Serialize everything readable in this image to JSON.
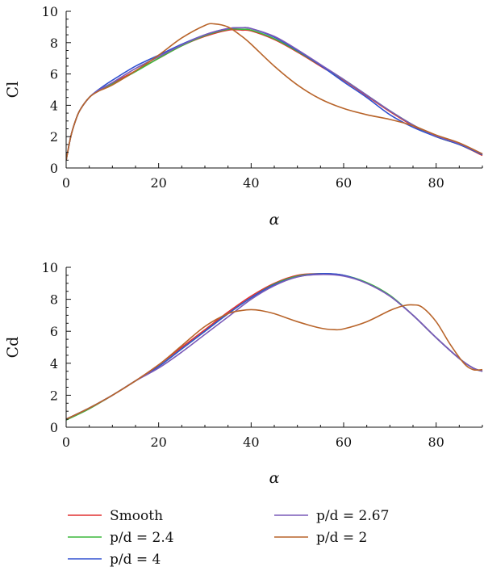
{
  "chart_data": [
    {
      "type": "line",
      "id": "cl",
      "ylabel": "Cl",
      "xlabel": "α",
      "xlim": [
        0,
        90
      ],
      "ylim": [
        0,
        10
      ],
      "xticks": [
        "0",
        "20",
        "40",
        "60",
        "80"
      ],
      "yticks": [
        "0",
        "2",
        "4",
        "6",
        "8",
        "10"
      ],
      "series": [
        {
          "name": "Smooth",
          "color": "#e03030",
          "x": [
            0,
            1,
            2,
            3,
            5,
            7,
            10,
            15,
            20,
            25,
            30,
            35,
            38,
            40,
            45,
            50,
            55,
            60,
            65,
            70,
            75,
            80,
            85,
            90
          ],
          "y": [
            0.5,
            2.0,
            3.0,
            3.7,
            4.5,
            4.95,
            5.4,
            6.2,
            7.0,
            7.8,
            8.4,
            8.8,
            8.8,
            8.75,
            8.2,
            7.4,
            6.5,
            5.6,
            4.6,
            3.6,
            2.7,
            2.0,
            1.5,
            0.8
          ]
        },
        {
          "name": "p/d = 2.4",
          "color": "#3cb83c",
          "x": [
            0,
            1,
            2,
            3,
            5,
            7,
            10,
            15,
            20,
            25,
            30,
            35,
            38,
            40,
            45,
            50,
            55,
            60,
            65,
            70,
            75,
            80,
            85,
            90
          ],
          "y": [
            0.5,
            2.0,
            3.0,
            3.7,
            4.5,
            4.95,
            5.35,
            6.15,
            7.0,
            7.8,
            8.45,
            8.85,
            8.85,
            8.8,
            8.25,
            7.45,
            6.55,
            5.65,
            4.65,
            3.65,
            2.75,
            2.0,
            1.5,
            0.85
          ]
        },
        {
          "name": "p/d = 4",
          "color": "#3050d0",
          "x": [
            0,
            1,
            2,
            3,
            5,
            7,
            10,
            15,
            20,
            25,
            30,
            35,
            38,
            40,
            45,
            50,
            55,
            60,
            65,
            70,
            75,
            80,
            85,
            90
          ],
          "y": [
            0.5,
            2.0,
            3.0,
            3.7,
            4.5,
            5.0,
            5.6,
            6.5,
            7.2,
            7.9,
            8.5,
            8.9,
            8.95,
            8.9,
            8.35,
            7.5,
            6.55,
            5.5,
            4.5,
            3.4,
            2.6,
            2.0,
            1.5,
            0.85
          ]
        },
        {
          "name": "p/d = 2.67",
          "color": "#7a5ab8",
          "x": [
            0,
            1,
            2,
            3,
            5,
            7,
            10,
            15,
            20,
            25,
            30,
            35,
            38,
            40,
            45,
            50,
            55,
            60,
            65,
            70,
            75,
            80,
            85,
            90
          ],
          "y": [
            0.5,
            2.0,
            3.0,
            3.7,
            4.5,
            4.95,
            5.45,
            6.35,
            7.1,
            7.85,
            8.5,
            8.9,
            8.95,
            8.9,
            8.4,
            7.55,
            6.6,
            5.65,
            4.65,
            3.65,
            2.75,
            2.05,
            1.55,
            0.9
          ]
        },
        {
          "name": "p/d = 2",
          "color": "#b8642a",
          "x": [
            0,
            1,
            2,
            3,
            5,
            7,
            10,
            15,
            20,
            25,
            30,
            32,
            35,
            38,
            40,
            45,
            50,
            55,
            60,
            65,
            70,
            75,
            80,
            85,
            90
          ],
          "y": [
            0.5,
            2.0,
            3.0,
            3.7,
            4.5,
            4.9,
            5.3,
            6.2,
            7.2,
            8.3,
            9.1,
            9.2,
            9.0,
            8.4,
            7.9,
            6.5,
            5.3,
            4.4,
            3.8,
            3.4,
            3.1,
            2.7,
            2.1,
            1.6,
            0.9
          ]
        }
      ]
    },
    {
      "type": "line",
      "id": "cd",
      "ylabel": "Cd",
      "xlabel": "α",
      "xlim": [
        0,
        90
      ],
      "ylim": [
        0,
        10
      ],
      "xticks": [
        "0",
        "20",
        "40",
        "60",
        "80"
      ],
      "yticks": [
        "0",
        "2",
        "4",
        "6",
        "8",
        "10"
      ],
      "series": [
        {
          "name": "Smooth",
          "color": "#e03030",
          "x": [
            0,
            5,
            10,
            15,
            20,
            25,
            30,
            35,
            40,
            45,
            50,
            55,
            60,
            65,
            70,
            75,
            80,
            85,
            88,
            90
          ],
          "y": [
            0.5,
            1.2,
            2.0,
            2.9,
            3.9,
            5.0,
            6.1,
            7.2,
            8.2,
            9.0,
            9.5,
            9.6,
            9.5,
            9.0,
            8.2,
            7.0,
            5.6,
            4.3,
            3.7,
            3.5
          ]
        },
        {
          "name": "p/d = 2.4",
          "color": "#3cb83c",
          "x": [
            0,
            5,
            10,
            15,
            20,
            25,
            30,
            35,
            40,
            45,
            50,
            55,
            60,
            65,
            70,
            75,
            80,
            85,
            88,
            90
          ],
          "y": [
            0.45,
            1.15,
            2.0,
            2.9,
            3.8,
            4.9,
            6.0,
            7.1,
            8.1,
            8.95,
            9.45,
            9.6,
            9.5,
            9.05,
            8.25,
            7.0,
            5.6,
            4.3,
            3.7,
            3.5
          ]
        },
        {
          "name": "p/d = 4",
          "color": "#3050d0",
          "x": [
            0,
            5,
            10,
            15,
            20,
            25,
            30,
            35,
            40,
            45,
            50,
            55,
            60,
            65,
            70,
            75,
            80,
            85,
            88,
            90
          ],
          "y": [
            0.5,
            1.2,
            2.0,
            2.9,
            3.8,
            4.9,
            6.0,
            7.1,
            8.1,
            8.9,
            9.4,
            9.6,
            9.5,
            9.0,
            8.2,
            7.0,
            5.6,
            4.3,
            3.7,
            3.5
          ]
        },
        {
          "name": "p/d = 2.67",
          "color": "#7a5ab8",
          "x": [
            0,
            5,
            10,
            15,
            20,
            25,
            30,
            35,
            40,
            45,
            50,
            55,
            60,
            65,
            70,
            75,
            80,
            85,
            88,
            90
          ],
          "y": [
            0.5,
            1.2,
            2.0,
            2.9,
            3.7,
            4.7,
            5.8,
            6.9,
            8.0,
            8.85,
            9.4,
            9.55,
            9.45,
            9.0,
            8.2,
            7.0,
            5.6,
            4.3,
            3.7,
            3.5
          ]
        },
        {
          "name": "p/d = 2",
          "color": "#b8642a",
          "x": [
            0,
            5,
            10,
            15,
            20,
            25,
            30,
            35,
            38,
            40,
            42,
            45,
            50,
            55,
            58,
            60,
            65,
            70,
            73,
            75,
            77,
            80,
            83,
            86,
            88,
            90
          ],
          "y": [
            0.5,
            1.2,
            2.0,
            2.9,
            3.9,
            5.1,
            6.3,
            7.1,
            7.3,
            7.35,
            7.3,
            7.1,
            6.6,
            6.2,
            6.1,
            6.15,
            6.6,
            7.3,
            7.6,
            7.65,
            7.5,
            6.6,
            5.2,
            4.0,
            3.6,
            3.6
          ]
        }
      ]
    }
  ],
  "legend": {
    "placement": "bottom",
    "items": [
      {
        "label": "Smooth",
        "color": "#e03030"
      },
      {
        "label": "p/d = 2.4",
        "color": "#3cb83c"
      },
      {
        "label": "p/d = 4",
        "color": "#3050d0"
      },
      {
        "label": "p/d = 2.67",
        "color": "#7a5ab8"
      },
      {
        "label": "p/d = 2",
        "color": "#b8642a"
      }
    ]
  }
}
